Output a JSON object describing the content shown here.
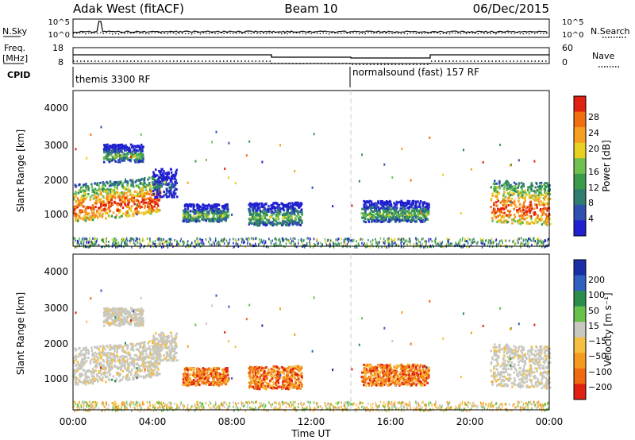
{
  "header": {
    "station": "Adak West (fitACF)",
    "beam": "Beam 10",
    "date": "06/Dec/2015"
  },
  "noise_panel": {
    "left_label": "N.Sky",
    "right_label": "N.Search",
    "ytick_top": "10^5",
    "ytick_bottom": "10^0",
    "rtick_top": "10^5",
    "rtick_bottom": "10^0"
  },
  "freq_panel": {
    "left_label_line1": "Freq.",
    "left_label_line2": "[MHz]",
    "right_label": "Nave",
    "ytick_top": "18",
    "ytick_bottom": "8",
    "rtick_top": "60",
    "rtick_bottom": "0"
  },
  "cpid_panel": {
    "label": "CPID",
    "mode_a": "themis 3300 RF",
    "mode_b": "normalsound (fast) 157 RF"
  },
  "power_panel": {
    "ylabel": "Slant Range [km]",
    "yticks": [
      "1000",
      "2000",
      "3000",
      "4000"
    ],
    "colorbar_label": "Power [dB]",
    "colorbar_ticks": [
      "4",
      "8",
      "12",
      "16",
      "20",
      "24",
      "28"
    ]
  },
  "velocity_panel": {
    "ylabel": "Slant Range [km]",
    "yticks": [
      "1000",
      "2000",
      "3000",
      "4000"
    ],
    "colorbar_label": "Velocity [m s⁻¹]",
    "colorbar_ticks": [
      "200",
      "100",
      "50",
      "15",
      "−15",
      "−50",
      "−100",
      "−200"
    ]
  },
  "xaxis": {
    "label": "Time UT",
    "ticks": [
      "00:00",
      "04:00",
      "08:00",
      "12:00",
      "16:00",
      "20:00",
      "00:00"
    ]
  },
  "chart_data": {
    "type": "heatmap",
    "x_range_hours": [
      0,
      24
    ],
    "y_range_km": [
      180,
      4600
    ],
    "mode_change_hour": 14,
    "power_colors": [
      "#2020d0",
      "#3050b0",
      "#2e7d6e",
      "#3a9b4a",
      "#70c050",
      "#e8d020",
      "#f5a020",
      "#f07010",
      "#e02010"
    ],
    "velocity_colors": [
      "#1a2ea8",
      "#3060c0",
      "#2a8e4a",
      "#66c24a",
      "#c8c8c0",
      "#f5c040",
      "#f59a20",
      "#ef6a10",
      "#e02010"
    ],
    "freq_segments": [
      {
        "start": 0,
        "end": 10,
        "mhz": 13.5
      },
      {
        "start": 10,
        "end": 14,
        "mhz": 12.0
      },
      {
        "start": 14,
        "end": 18,
        "mhz": 11.5
      },
      {
        "start": 18,
        "end": 24,
        "mhz": 13.5
      }
    ],
    "scatter_regions": [
      {
        "t0": 0.0,
        "t1": 4.4,
        "r_top": 1950,
        "r_bot": 900,
        "slope": 0.25,
        "power": "strong",
        "velocity": "ground"
      },
      {
        "t0": 1.5,
        "t1": 3.5,
        "r_top": 3100,
        "r_bot": 2600,
        "slope": 0,
        "power": "medium",
        "velocity": "ground"
      },
      {
        "t0": 4.0,
        "t1": 5.2,
        "r_top": 2400,
        "r_bot": 1600,
        "slope": 0,
        "power": "weak",
        "velocity": "ground"
      },
      {
        "t0": 5.5,
        "t1": 7.8,
        "r_top": 1400,
        "r_bot": 900,
        "slope": 0,
        "power": "medium",
        "velocity": "away"
      },
      {
        "t0": 8.8,
        "t1": 11.5,
        "r_top": 1450,
        "r_bot": 800,
        "slope": 0,
        "power": "medium",
        "velocity": "away"
      },
      {
        "t0": 14.5,
        "t1": 17.9,
        "r_top": 1500,
        "r_bot": 900,
        "slope": 0,
        "power": "medium",
        "velocity": "away"
      },
      {
        "t0": 21.0,
        "t1": 24.0,
        "r_top": 2100,
        "r_bot": 900,
        "slope": -0.1,
        "power": "strong",
        "velocity": "ground"
      }
    ]
  }
}
